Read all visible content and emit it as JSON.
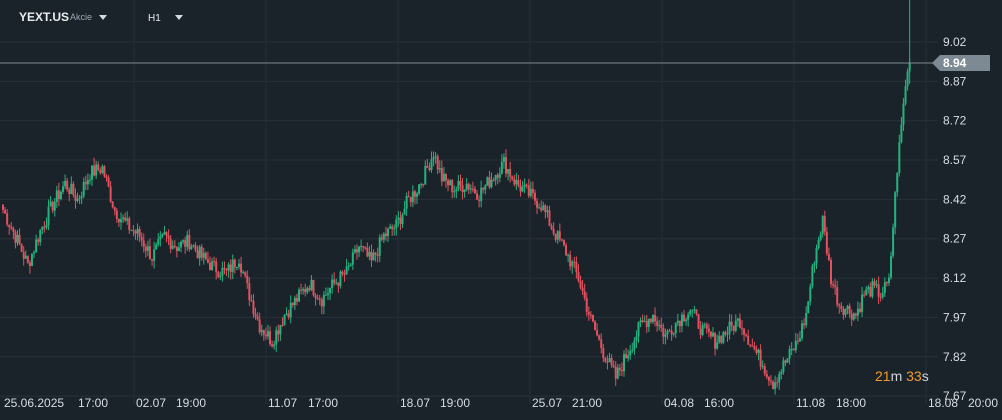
{
  "header": {
    "symbol": "YEXT.US",
    "instrument_type": "Akcie",
    "timeframe": "H1"
  },
  "countdown": {
    "minutes": "21",
    "minutes_unit": "m",
    "seconds": "33",
    "seconds_unit": "s"
  },
  "colors": {
    "background": "#1b232a",
    "grid": "#27313a",
    "up": "#26b27e",
    "down": "#e0525e",
    "axis_text": "#d7dde2",
    "current_price_tag": "#7d8a94"
  },
  "icons": [
    "symbol-dropdown-caret-icon",
    "timeframe-dropdown-caret-icon"
  ],
  "chart_data": {
    "type": "candlestick",
    "symbol": "YEXT.US",
    "timeframe": "H1",
    "y_axis_ticks": [
      9.02,
      8.87,
      8.72,
      8.57,
      8.42,
      8.27,
      8.12,
      7.97,
      7.82,
      7.67
    ],
    "ylim": [
      7.64,
      9.18
    ],
    "current_price": 8.94,
    "x_axis_ticks": [
      "25.06.2025",
      "17:00",
      "02.07",
      "19:00",
      "11.07",
      "17:00",
      "18.07",
      "19:00",
      "25.07",
      "21:00",
      "04.08",
      "16:00",
      "11.08",
      "18:00",
      "18.08",
      "20:00"
    ],
    "approx_close_path": [
      [
        0,
        8.38
      ],
      [
        6,
        8.28
      ],
      [
        12,
        8.17
      ],
      [
        18,
        8.3
      ],
      [
        24,
        8.4
      ],
      [
        30,
        8.48
      ],
      [
        36,
        8.42
      ],
      [
        42,
        8.52
      ],
      [
        48,
        8.54
      ],
      [
        54,
        8.38
      ],
      [
        60,
        8.32
      ],
      [
        66,
        8.28
      ],
      [
        72,
        8.2
      ],
      [
        78,
        8.28
      ],
      [
        84,
        8.24
      ],
      [
        90,
        8.26
      ],
      [
        96,
        8.2
      ],
      [
        102,
        8.16
      ],
      [
        108,
        8.14
      ],
      [
        114,
        8.2
      ],
      [
        118,
        8.08
      ],
      [
        124,
        7.94
      ],
      [
        130,
        7.88
      ],
      [
        136,
        7.98
      ],
      [
        142,
        8.04
      ],
      [
        148,
        8.1
      ],
      [
        154,
        8.04
      ],
      [
        160,
        8.1
      ],
      [
        166,
        8.14
      ],
      [
        172,
        8.24
      ],
      [
        178,
        8.18
      ],
      [
        184,
        8.28
      ],
      [
        190,
        8.32
      ],
      [
        196,
        8.42
      ],
      [
        200,
        8.46
      ],
      [
        204,
        8.52
      ],
      [
        208,
        8.6
      ],
      [
        212,
        8.5
      ],
      [
        218,
        8.46
      ],
      [
        224,
        8.48
      ],
      [
        230,
        8.44
      ],
      [
        236,
        8.5
      ],
      [
        242,
        8.56
      ],
      [
        248,
        8.48
      ],
      [
        254,
        8.44
      ],
      [
        260,
        8.4
      ],
      [
        266,
        8.3
      ],
      [
        272,
        8.22
      ],
      [
        278,
        8.12
      ],
      [
        284,
        7.96
      ],
      [
        290,
        7.84
      ],
      [
        296,
        7.74
      ],
      [
        302,
        7.84
      ],
      [
        308,
        7.94
      ],
      [
        314,
        7.98
      ],
      [
        320,
        7.9
      ],
      [
        326,
        7.96
      ],
      [
        332,
        8.0
      ],
      [
        338,
        7.92
      ],
      [
        344,
        7.88
      ],
      [
        350,
        7.92
      ],
      [
        356,
        7.96
      ],
      [
        362,
        7.86
      ],
      [
        368,
        7.78
      ],
      [
        372,
        7.72
      ],
      [
        378,
        7.8
      ],
      [
        384,
        7.88
      ],
      [
        388,
        7.98
      ],
      [
        392,
        8.2
      ],
      [
        396,
        8.34
      ],
      [
        400,
        8.12
      ],
      [
        404,
        8.02
      ],
      [
        408,
        8.0
      ],
      [
        412,
        7.98
      ],
      [
        416,
        8.06
      ],
      [
        420,
        8.08
      ],
      [
        424,
        8.06
      ],
      [
        428,
        8.1
      ],
      [
        432,
        8.54
      ],
      [
        436,
        8.86
      ],
      [
        438,
        8.94
      ]
    ]
  }
}
